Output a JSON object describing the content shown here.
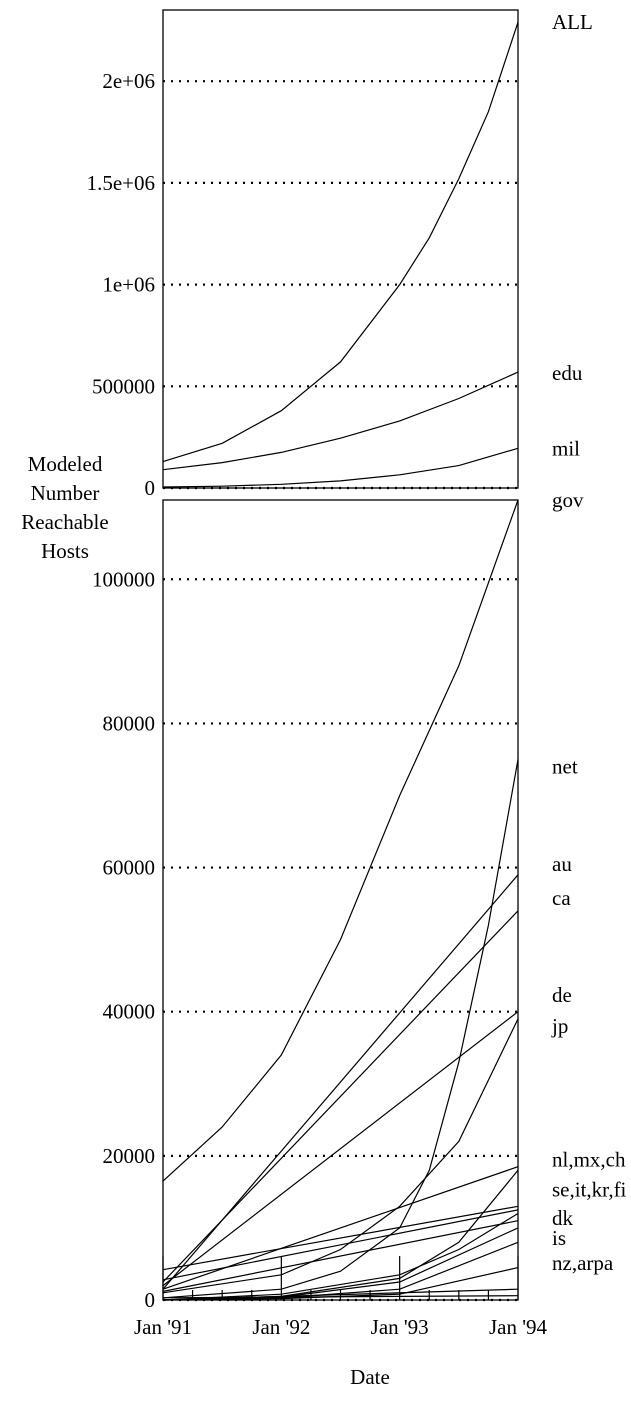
{
  "chart_data": {
    "type": "line",
    "ylabel": "Modeled Number Reachable Hosts",
    "xlabel": "Date",
    "ylabel_lines": [
      "Modeled",
      "Number",
      "Reachable",
      "Hosts"
    ],
    "x_tick_labels": [
      "Jan '91",
      "Jan '92",
      "Jan '93",
      "Jan '94"
    ],
    "x_range": [
      1991.0,
      1994.0
    ],
    "panels": [
      {
        "name": "top",
        "ylim": [
          0,
          2350000
        ],
        "y_ticks": [
          {
            "value": 0,
            "label": "0",
            "dotted": true
          },
          {
            "value": 500000,
            "label": "500000",
            "dotted": true
          },
          {
            "value": 1000000,
            "label": "1e+06",
            "dotted": true
          },
          {
            "value": 1500000,
            "label": "1.5e+06",
            "dotted": true
          },
          {
            "value": 2000000,
            "label": "2e+06",
            "dotted": true
          }
        ],
        "series": [
          {
            "name": "ALL",
            "x": [
              1991.0,
              1991.5,
              1992.0,
              1992.5,
              1993.0,
              1993.25,
              1993.5,
              1993.75,
              1994.0
            ],
            "values": [
              130000,
              220000,
              380000,
              620000,
              1000000,
              1230000,
              1520000,
              1850000,
              2290000
            ]
          },
          {
            "name": "edu",
            "x": [
              1991.0,
              1991.5,
              1992.0,
              1992.5,
              1993.0,
              1993.5,
              1994.0
            ],
            "values": [
              90000,
              125000,
              175000,
              245000,
              330000,
              440000,
              570000
            ]
          },
          {
            "name": "mil",
            "x": [
              1991.0,
              1991.5,
              1992.0,
              1992.5,
              1993.0,
              1993.5,
              1994.0
            ],
            "values": [
              5000,
              9000,
              18000,
              35000,
              65000,
              110000,
              195000
            ]
          }
        ],
        "labels": [
          {
            "text": "ALL",
            "value": 2290000
          },
          {
            "text": "edu",
            "value": 565000
          },
          {
            "text": "mil",
            "value": 195000
          }
        ]
      },
      {
        "name": "bottom",
        "ylim": [
          0,
          111000
        ],
        "y_ticks": [
          {
            "value": 0,
            "label": "0",
            "dotted": true
          },
          {
            "value": 20000,
            "label": "20000",
            "dotted": true
          },
          {
            "value": 40000,
            "label": "40000",
            "dotted": true
          },
          {
            "value": 60000,
            "label": "60000",
            "dotted": true
          },
          {
            "value": 80000,
            "label": "80000",
            "dotted": true
          },
          {
            "value": 100000,
            "label": "100000",
            "dotted": true
          }
        ],
        "series": [
          {
            "name": "gov",
            "x": [
              1991.0,
              1991.5,
              1992.0,
              1992.5,
              1993.0,
              1993.5,
              1994.0
            ],
            "values": [
              16500,
              24000,
              34000,
              50000,
              70000,
              88000,
              111000
            ]
          },
          {
            "name": "net",
            "x": [
              1991.0,
              1992.0,
              1992.5,
              1993.0,
              1993.25,
              1993.5,
              1993.75,
              1994.0
            ],
            "values": [
              300,
              1500,
              4000,
              10000,
              18000,
              33000,
              52000,
              75000
            ]
          },
          {
            "name": "au",
            "x": [
              1991.0,
              1994.0
            ],
            "values": [
              1500,
              59000
            ]
          },
          {
            "name": "ca",
            "x": [
              1991.0,
              1994.0
            ],
            "values": [
              2500,
              54000
            ]
          },
          {
            "name": "de",
            "x": [
              1991.0,
              1994.0
            ],
            "values": [
              2000,
              40000
            ]
          },
          {
            "name": "jp",
            "x": [
              1991.0,
              1992.0,
              1992.5,
              1993.0,
              1993.5,
              1994.0
            ],
            "values": [
              1000,
              3500,
              7000,
              13000,
              22000,
              39000
            ]
          },
          {
            "name": "nl",
            "x": [
              1991.0,
              1994.0
            ],
            "values": [
              1500,
              18500
            ]
          },
          {
            "name": "mx",
            "x": [
              1991.0,
              1992.0,
              1993.0,
              1993.5,
              1994.0
            ],
            "values": [
              0,
              500,
              3000,
              8000,
              18000
            ]
          },
          {
            "name": "ch",
            "x": [
              1991.0,
              1994.0
            ],
            "values": [
              4200,
              13000
            ]
          },
          {
            "name": "se",
            "x": [
              1991.0,
              1994.0
            ],
            "values": [
              2800,
              12500
            ]
          },
          {
            "name": "it",
            "x": [
              1991.0,
              1994.0
            ],
            "values": [
              1200,
              11000
            ]
          },
          {
            "name": "kr",
            "x": [
              1991.0,
              1992.0,
              1993.0,
              1993.5,
              1994.0
            ],
            "values": [
              0,
              800,
              3500,
              7000,
              12000
            ]
          },
          {
            "name": "fi",
            "x": [
              1991.0,
              1992.0,
              1993.0,
              1994.0
            ],
            "values": [
              0,
              400,
              2500,
              10000
            ]
          },
          {
            "name": "dk",
            "x": [
              1991.0,
              1992.0,
              1993.0,
              1994.0
            ],
            "values": [
              0,
              300,
              1500,
              8000
            ]
          },
          {
            "name": "is",
            "x": [
              1991.0,
              1992.0,
              1993.0,
              1994.0
            ],
            "values": [
              0,
              200,
              800,
              4500
            ]
          },
          {
            "name": "nz",
            "x": [
              1991.0,
              1994.0
            ],
            "values": [
              0,
              1500
            ]
          },
          {
            "name": "arpa",
            "x": [
              1991.0,
              1994.0
            ],
            "values": [
              300,
              600
            ]
          }
        ],
        "labels": [
          {
            "text": "gov",
            "value": 111000
          },
          {
            "text": "net",
            "value": 74000
          },
          {
            "text": "au",
            "value": 60500
          },
          {
            "text": "ca",
            "value": 55800
          },
          {
            "text": "de",
            "value": 42300
          },
          {
            "text": "jp",
            "value": 38000
          },
          {
            "text": "nl,mx,ch",
            "value": 19500
          },
          {
            "text": "se,it,kr,fi",
            "value": 15300
          },
          {
            "text": "dk",
            "value": 11400
          },
          {
            "text": "is",
            "value": 8600
          },
          {
            "text": "nz,arpa",
            "value": 5100
          }
        ]
      }
    ]
  }
}
